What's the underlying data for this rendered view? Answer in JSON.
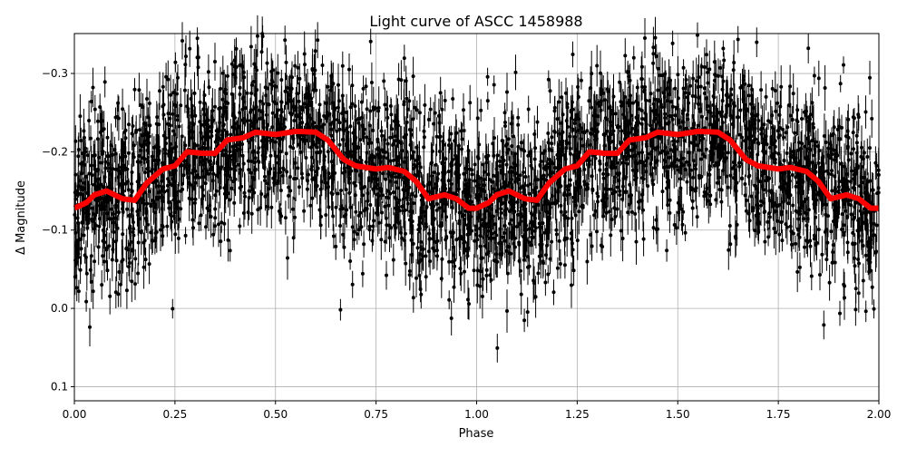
{
  "chart_data": {
    "type": "scatter",
    "title": "Light curve of ASCC 1458988",
    "xlabel": "Phase",
    "ylabel": "Δ Magnitude",
    "xlim": [
      0,
      2.0
    ],
    "ylim": [
      0.118,
      -0.351
    ],
    "y_inverted": true,
    "grid": true,
    "xticks": [
      "0.00",
      "0.25",
      "0.50",
      "0.75",
      "1.00",
      "1.25",
      "1.50",
      "1.75",
      "2.00"
    ],
    "xtick_values": [
      0,
      0.25,
      0.5,
      0.75,
      1.0,
      1.25,
      1.5,
      1.75,
      2.0
    ],
    "yticks": [
      "−0.3",
      "−0.2",
      "−0.1",
      "0.0",
      "0.1"
    ],
    "ytick_values": [
      -0.3,
      -0.2,
      -0.1,
      0.0,
      0.1
    ],
    "series": [
      {
        "kind": "observations with error bars",
        "color": "#000000"
      },
      {
        "kind": "binned mean",
        "color": "#ff0000",
        "x": [
          0,
          0.03,
          0.05,
          0.08,
          0.1,
          0.12,
          0.15,
          0.18,
          0.22,
          0.25,
          0.28,
          0.32,
          0.35,
          0.38,
          0.42,
          0.45,
          0.5,
          0.55,
          0.6,
          0.63,
          0.67,
          0.7,
          0.75,
          0.78,
          0.82,
          0.85,
          0.88,
          0.92,
          0.95,
          0.98,
          1.0
        ],
        "y": [
          -0.128,
          -0.135,
          -0.145,
          -0.15,
          -0.145,
          -0.14,
          -0.138,
          -0.16,
          -0.178,
          -0.182,
          -0.2,
          -0.198,
          -0.198,
          -0.215,
          -0.218,
          -0.225,
          -0.222,
          -0.226,
          -0.225,
          -0.215,
          -0.19,
          -0.182,
          -0.178,
          -0.18,
          -0.175,
          -0.162,
          -0.14,
          -0.145,
          -0.14,
          -0.128,
          -0.128
        ],
        "repeats_with_period": 1.0
      }
    ]
  }
}
